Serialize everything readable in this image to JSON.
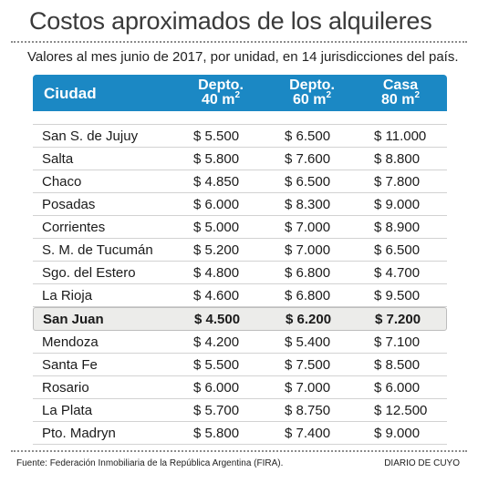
{
  "title": "Costos aproximados de los alquileres",
  "subtitle": "Valores al mes junio de 2017, por unidad, en 14 jurisdicciones del país.",
  "table": {
    "headers": {
      "city": "Ciudad",
      "col1_line1": "Depto.",
      "col1_line2": "40 m",
      "col2_line1": "Depto.",
      "col2_line2": "60 m",
      "col3_line1": "Casa",
      "col3_line2": "80 m",
      "superscript": "2"
    },
    "rows": [
      {
        "city": "San S. de Jujuy",
        "d40": "$ 5.500",
        "d60": "$ 6.500",
        "casa80": "$ 11.000"
      },
      {
        "city": "Salta",
        "d40": "$ 5.800",
        "d60": "$ 7.600",
        "casa80": "$ 8.800"
      },
      {
        "city": "Chaco",
        "d40": "$ 4.850",
        "d60": "$ 6.500",
        "casa80": "$ 7.800"
      },
      {
        "city": "Posadas",
        "d40": "$ 6.000",
        "d60": "$ 8.300",
        "casa80": "$ 9.000"
      },
      {
        "city": "Corrientes",
        "d40": "$ 5.000",
        "d60": "$ 7.000",
        "casa80": "$ 8.900"
      },
      {
        "city": "S. M. de Tucumán",
        "d40": "$ 5.200",
        "d60": "$ 7.000",
        "casa80": "$ 6.500"
      },
      {
        "city": "Sgo. del Estero",
        "d40": "$ 4.800",
        "d60": "$ 6.800",
        "casa80": "$ 4.700"
      },
      {
        "city": "La Rioja",
        "d40": "$ 4.600",
        "d60": "$ 6.800",
        "casa80": "$ 9.500"
      },
      {
        "city": "San Juan",
        "d40": "$ 4.500",
        "d60": "$ 6.200",
        "casa80": "$ 7.200"
      },
      {
        "city": "Mendoza",
        "d40": "$ 4.200",
        "d60": "$ 5.400",
        "casa80": "$ 7.100"
      },
      {
        "city": "Santa Fe",
        "d40": "$ 5.500",
        "d60": "$ 7.500",
        "casa80": "$ 8.500"
      },
      {
        "city": "Rosario",
        "d40": "$ 6.000",
        "d60": "$ 7.000",
        "casa80": "$ 6.000"
      },
      {
        "city": "La Plata",
        "d40": "$ 5.700",
        "d60": "$ 8.750",
        "casa80": "$ 12.500"
      },
      {
        "city": "Pto. Madryn",
        "d40": "$ 5.800",
        "d60": "$ 7.400",
        "casa80": "$ 9.000"
      }
    ]
  },
  "footer": {
    "source": "Fuente: Federación Inmobiliaria de la República Argentina (FIRA).",
    "brand": "DIARIO DE CUYO"
  },
  "colors": {
    "header_bg": "#1b88c4",
    "highlight_bg": "#ececea"
  }
}
